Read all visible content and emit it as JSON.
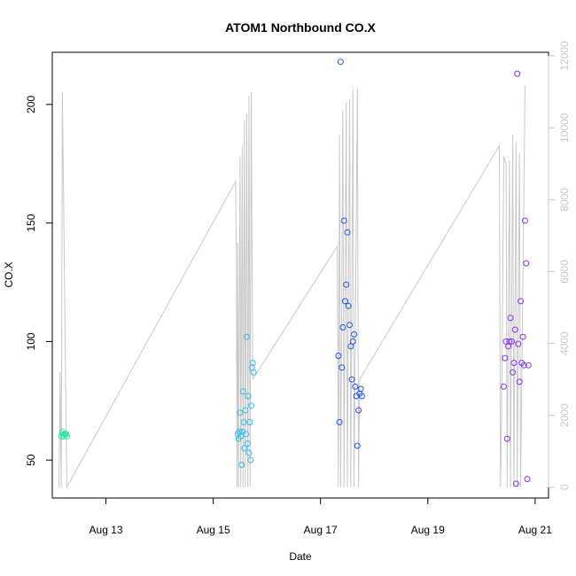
{
  "colors": {
    "background": "#ffffff",
    "frame": "#000000",
    "line_series": "#c8c8c8",
    "right_axis": "#c8c8c8"
  },
  "chart_data": {
    "type": "scatter",
    "title": "ATOM1 Northbound CO.X",
    "xlabel": "Date",
    "ylabel": "CO.X",
    "x_tick_labels": [
      "Aug 13",
      "Aug 15",
      "Aug 17",
      "Aug 19",
      "Aug 21"
    ],
    "x_ticks": [
      "2015-08-13",
      "2015-08-15",
      "2015-08-17",
      "2015-08-19",
      "2015-08-21"
    ],
    "xlim": [
      "2015-08-12T00:00",
      "2015-08-21T06:00"
    ],
    "y_ticks": [
      50,
      100,
      150,
      200
    ],
    "ylim": [
      34,
      222
    ],
    "y2_ticks": [
      0,
      2000,
      4000,
      6000,
      8000,
      10000,
      12000
    ],
    "y2lim": [
      -300,
      12100
    ],
    "grid": false,
    "legend": "none",
    "series": [
      {
        "kind": "points",
        "color": "#2ee6a8",
        "points": [
          {
            "x": "2015-08-12T04:10",
            "y": 60
          },
          {
            "x": "2015-08-12T04:30",
            "y": 62
          },
          {
            "x": "2015-08-12T04:50",
            "y": 61
          },
          {
            "x": "2015-08-12T05:10",
            "y": 60
          },
          {
            "x": "2015-08-12T05:30",
            "y": 61
          },
          {
            "x": "2015-08-12T05:50",
            "y": 61
          },
          {
            "x": "2015-08-12T06:10",
            "y": 61
          },
          {
            "x": "2015-08-12T06:30",
            "y": 60
          }
        ]
      },
      {
        "kind": "points",
        "color": "#33bbee",
        "points": [
          {
            "x": "2015-08-15T11:00",
            "y": 61
          },
          {
            "x": "2015-08-15T11:20",
            "y": 59
          },
          {
            "x": "2015-08-15T11:40",
            "y": 62
          },
          {
            "x": "2015-08-15T12:00",
            "y": 70
          },
          {
            "x": "2015-08-15T12:20",
            "y": 60
          },
          {
            "x": "2015-08-15T12:40",
            "y": 48
          },
          {
            "x": "2015-08-15T13:00",
            "y": 62
          },
          {
            "x": "2015-08-15T13:20",
            "y": 79
          },
          {
            "x": "2015-08-15T13:40",
            "y": 66
          },
          {
            "x": "2015-08-15T14:00",
            "y": 55
          },
          {
            "x": "2015-08-15T14:20",
            "y": 71
          },
          {
            "x": "2015-08-15T14:40",
            "y": 61
          },
          {
            "x": "2015-08-15T15:00",
            "y": 102
          },
          {
            "x": "2015-08-15T15:20",
            "y": 57
          },
          {
            "x": "2015-08-15T15:40",
            "y": 77
          },
          {
            "x": "2015-08-15T16:00",
            "y": 53
          },
          {
            "x": "2015-08-15T16:20",
            "y": 66
          },
          {
            "x": "2015-08-15T16:40",
            "y": 50
          },
          {
            "x": "2015-08-15T17:00",
            "y": 73
          },
          {
            "x": "2015-08-15T17:20",
            "y": 89
          },
          {
            "x": "2015-08-15T17:40",
            "y": 91
          },
          {
            "x": "2015-08-15T18:00",
            "y": 87
          }
        ]
      },
      {
        "kind": "points",
        "color": "#2255ee",
        "points": [
          {
            "x": "2015-08-17T08:00",
            "y": 94
          },
          {
            "x": "2015-08-17T08:30",
            "y": 66
          },
          {
            "x": "2015-08-17T09:00",
            "y": 218
          },
          {
            "x": "2015-08-17T09:30",
            "y": 89
          },
          {
            "x": "2015-08-17T10:00",
            "y": 106
          },
          {
            "x": "2015-08-17T10:30",
            "y": 151
          },
          {
            "x": "2015-08-17T11:00",
            "y": 117
          },
          {
            "x": "2015-08-17T11:30",
            "y": 124
          },
          {
            "x": "2015-08-17T12:00",
            "y": 146
          },
          {
            "x": "2015-08-17T12:30",
            "y": 115
          },
          {
            "x": "2015-08-17T13:00",
            "y": 107
          },
          {
            "x": "2015-08-17T13:30",
            "y": 98
          },
          {
            "x": "2015-08-17T14:00",
            "y": 84
          },
          {
            "x": "2015-08-17T14:30",
            "y": 100
          },
          {
            "x": "2015-08-17T15:00",
            "y": 103
          },
          {
            "x": "2015-08-17T15:30",
            "y": 81
          },
          {
            "x": "2015-08-17T16:00",
            "y": 77
          },
          {
            "x": "2015-08-17T16:30",
            "y": 56
          },
          {
            "x": "2015-08-17T17:00",
            "y": 71
          },
          {
            "x": "2015-08-17T17:30",
            "y": 78
          },
          {
            "x": "2015-08-17T18:00",
            "y": 80
          },
          {
            "x": "2015-08-17T18:30",
            "y": 77
          }
        ]
      },
      {
        "kind": "points",
        "color": "#8833ee",
        "points": [
          {
            "x": "2015-08-20T10:00",
            "y": 81
          },
          {
            "x": "2015-08-20T10:30",
            "y": 93
          },
          {
            "x": "2015-08-20T11:00",
            "y": 100
          },
          {
            "x": "2015-08-20T11:30",
            "y": 59
          },
          {
            "x": "2015-08-20T12:00",
            "y": 98
          },
          {
            "x": "2015-08-20T12:30",
            "y": 100
          },
          {
            "x": "2015-08-20T13:00",
            "y": 110
          },
          {
            "x": "2015-08-20T13:30",
            "y": 100
          },
          {
            "x": "2015-08-20T14:00",
            "y": 87
          },
          {
            "x": "2015-08-20T14:30",
            "y": 91
          },
          {
            "x": "2015-08-20T15:00",
            "y": 105
          },
          {
            "x": "2015-08-20T15:30",
            "y": 40
          },
          {
            "x": "2015-08-20T16:00",
            "y": 213
          },
          {
            "x": "2015-08-20T16:30",
            "y": 99
          },
          {
            "x": "2015-08-20T17:00",
            "y": 83
          },
          {
            "x": "2015-08-20T17:30",
            "y": 117
          },
          {
            "x": "2015-08-20T18:00",
            "y": 91
          },
          {
            "x": "2015-08-20T18:30",
            "y": 102
          },
          {
            "x": "2015-08-20T19:00",
            "y": 90
          },
          {
            "x": "2015-08-20T19:30",
            "y": 151
          },
          {
            "x": "2015-08-20T20:00",
            "y": 133
          },
          {
            "x": "2015-08-20T20:30",
            "y": 42
          },
          {
            "x": "2015-08-20T21:00",
            "y": 90
          }
        ]
      },
      {
        "kind": "line",
        "axis": "right",
        "color": "#c8c8c8",
        "points": [
          {
            "x": "2015-08-12T03:00",
            "y": 0
          },
          {
            "x": "2015-08-12T03:30",
            "y": 3200
          },
          {
            "x": "2015-08-12T04:00",
            "y": 0
          },
          {
            "x": "2015-08-12T04:30",
            "y": 11000
          },
          {
            "x": "2015-08-12T06:30",
            "y": 0
          },
          {
            "x": "2015-08-15T10:00",
            "y": 8500
          },
          {
            "x": "2015-08-15T10:20",
            "y": 6500
          },
          {
            "x": "2015-08-15T10:40",
            "y": 0
          },
          {
            "x": "2015-08-15T11:00",
            "y": 6800
          },
          {
            "x": "2015-08-15T11:20",
            "y": 0
          },
          {
            "x": "2015-08-15T12:00",
            "y": 9200
          },
          {
            "x": "2015-08-15T12:20",
            "y": 0
          },
          {
            "x": "2015-08-15T13:00",
            "y": 9500
          },
          {
            "x": "2015-08-15T13:20",
            "y": 0
          },
          {
            "x": "2015-08-15T14:00",
            "y": 10200
          },
          {
            "x": "2015-08-15T14:20",
            "y": 0
          },
          {
            "x": "2015-08-15T15:00",
            "y": 10400
          },
          {
            "x": "2015-08-15T15:30",
            "y": 0
          },
          {
            "x": "2015-08-15T16:00",
            "y": 10900
          },
          {
            "x": "2015-08-15T16:30",
            "y": 0
          },
          {
            "x": "2015-08-15T17:00",
            "y": 11000
          },
          {
            "x": "2015-08-15T17:40",
            "y": 3000
          },
          {
            "x": "2015-08-17T07:30",
            "y": 6700
          },
          {
            "x": "2015-08-17T08:00",
            "y": 0
          },
          {
            "x": "2015-08-17T08:30",
            "y": 9800
          },
          {
            "x": "2015-08-17T09:00",
            "y": 0
          },
          {
            "x": "2015-08-17T10:00",
            "y": 10500
          },
          {
            "x": "2015-08-17T10:30",
            "y": 0
          },
          {
            "x": "2015-08-17T11:30",
            "y": 10700
          },
          {
            "x": "2015-08-17T12:00",
            "y": 0
          },
          {
            "x": "2015-08-17T13:00",
            "y": 10800
          },
          {
            "x": "2015-08-17T13:30",
            "y": 0
          },
          {
            "x": "2015-08-17T14:30",
            "y": 11100
          },
          {
            "x": "2015-08-17T15:00",
            "y": 0
          },
          {
            "x": "2015-08-17T16:30",
            "y": 11100
          },
          {
            "x": "2015-08-17T17:00",
            "y": 0
          },
          {
            "x": "2015-08-17T17:30",
            "y": 3000
          },
          {
            "x": "2015-08-20T08:00",
            "y": 9500
          },
          {
            "x": "2015-08-20T08:30",
            "y": 0
          },
          {
            "x": "2015-08-20T09:00",
            "y": 2000
          },
          {
            "x": "2015-08-20T10:00",
            "y": 9200
          },
          {
            "x": "2015-08-20T11:00",
            "y": 9000
          },
          {
            "x": "2015-08-20T11:30",
            "y": 0
          },
          {
            "x": "2015-08-20T12:30",
            "y": 9100
          },
          {
            "x": "2015-08-20T13:00",
            "y": 0
          },
          {
            "x": "2015-08-20T14:00",
            "y": 9800
          },
          {
            "x": "2015-08-20T14:30",
            "y": 0
          },
          {
            "x": "2015-08-20T15:30",
            "y": 9600
          },
          {
            "x": "2015-08-20T16:00",
            "y": 0
          },
          {
            "x": "2015-08-20T17:00",
            "y": 9300
          },
          {
            "x": "2015-08-20T17:30",
            "y": 0
          },
          {
            "x": "2015-08-20T19:30",
            "y": 11200
          }
        ]
      }
    ]
  }
}
